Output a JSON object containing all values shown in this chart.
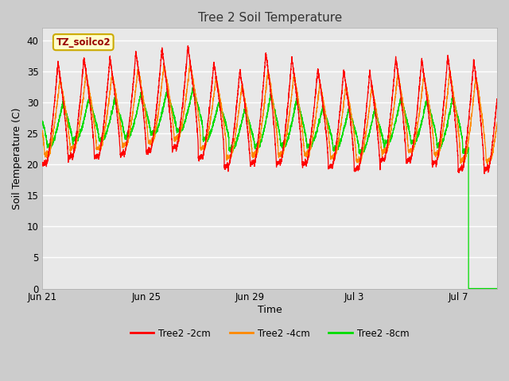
{
  "title": "Tree 2 Soil Temperature",
  "xlabel": "Time",
  "ylabel": "Soil Temperature (C)",
  "ylim": [
    0,
    42
  ],
  "yticks": [
    0,
    5,
    10,
    15,
    20,
    25,
    30,
    35,
    40
  ],
  "plot_bg_color": "#e8e8e8",
  "fig_bg_color": "#d4d4d4",
  "lower_bg_color": "#d0d0d0",
  "line_colors": {
    "2cm": "#ff0000",
    "4cm": "#ff8800",
    "8cm": "#00dd00"
  },
  "legend_labels": [
    "Tree2 -2cm",
    "Tree2 -4cm",
    "Tree2 -8cm"
  ],
  "annotation_text": "TZ_soilco2",
  "annotation_bg": "#ffffcc",
  "annotation_border": "#ccaa00",
  "annotation_text_color": "#990000",
  "x_tick_labels": [
    "Jun 21",
    "Jun 25",
    "Jun 29",
    "Jul 3",
    "Jul 7"
  ],
  "x_tick_positions": [
    0,
    4,
    8,
    12,
    16
  ],
  "num_days": 17.5,
  "green_drop_day": 16.4,
  "grid_color": "#ffffff",
  "active_data_min": 19.0
}
